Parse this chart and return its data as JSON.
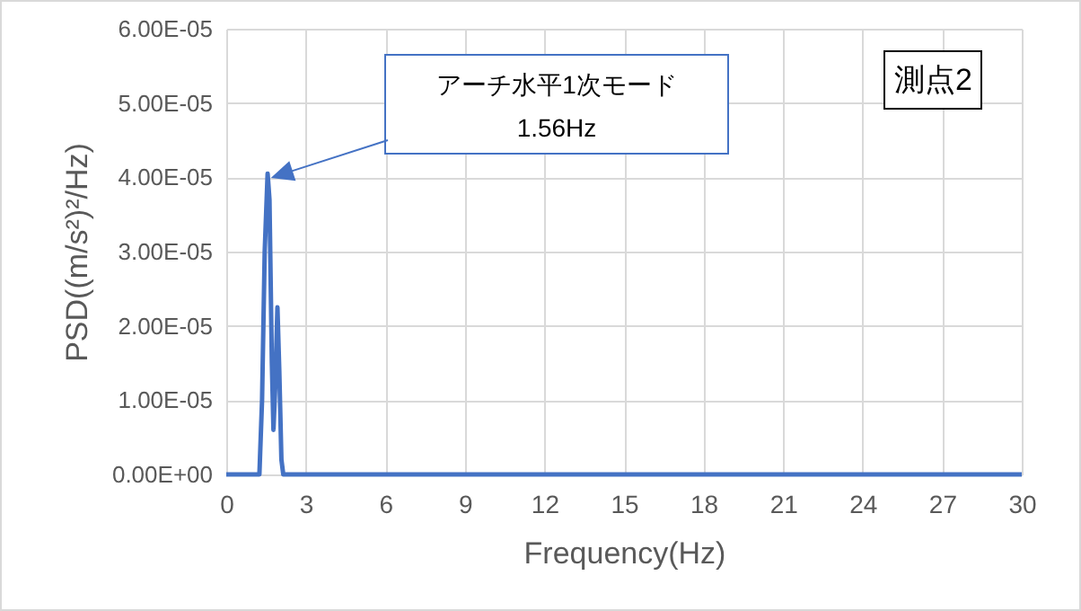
{
  "chart_data": {
    "type": "line",
    "xlabel": "Frequency(Hz)",
    "ylabel": "PSD((m/s²)²/Hz)",
    "x": [
      0,
      1.25,
      1.35,
      1.45,
      1.56,
      1.63,
      1.72,
      1.78,
      1.85,
      1.93,
      2.0,
      2.08,
      2.15,
      30
    ],
    "series": [
      {
        "color": "#4472c4",
        "values": [
          0,
          0,
          1e-05,
          3e-05,
          4.05e-05,
          3.7e-05,
          1.5e-05,
          6e-06,
          1.2e-05,
          2.25e-05,
          1.4e-05,
          2e-06,
          0,
          0
        ]
      }
    ],
    "xlim": [
      0,
      30
    ],
    "xticks": [
      0,
      3,
      6,
      9,
      12,
      15,
      18,
      21,
      24,
      27,
      30
    ],
    "ylim": [
      0,
      6e-05
    ],
    "yticks": [
      {
        "value": 0,
        "label": "0.00E+00"
      },
      {
        "value": 1e-05,
        "label": "1.00E-05"
      },
      {
        "value": 2e-05,
        "label": "2.00E-05"
      },
      {
        "value": 3e-05,
        "label": "3.00E-05"
      },
      {
        "value": 4e-05,
        "label": "4.00E-05"
      },
      {
        "value": 5e-05,
        "label": "5.00E-05"
      },
      {
        "value": 6e-05,
        "label": "6.00E-05"
      }
    ],
    "grid": true,
    "marker": "none",
    "line_style": "solid",
    "annotations": [
      "アーチ水平1次モード",
      "1.56Hz",
      "測点2"
    ]
  }
}
